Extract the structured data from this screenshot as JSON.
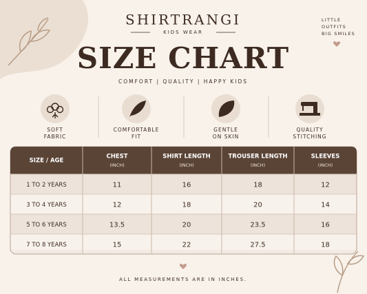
{
  "header": {
    "brand": "SHIRTRANGI",
    "subbrand": "KIDS WEAR",
    "tagline": [
      "LITTLE",
      "OUTFITS",
      "BIG SMILES"
    ],
    "title": "SIZE CHART",
    "subtitle": "COMFORT  |  QUALITY  |  HAPPY KIDS"
  },
  "features": [
    {
      "lines": [
        "SOFT",
        "FABRIC"
      ]
    },
    {
      "lines": [
        "COMFORTABLE",
        "FIT"
      ]
    },
    {
      "lines": [
        "GENTLE",
        "ON SKIN"
      ]
    },
    {
      "lines": [
        "QUALITY",
        "STITCHING"
      ]
    }
  ],
  "table": {
    "columns": [
      {
        "label": "SIZE / AGE"
      },
      {
        "label": "CHEST",
        "unit": "(INCH)"
      },
      {
        "label": "SHIRT LENGTH",
        "unit": "(INCH)"
      },
      {
        "label": "TROUSER LENGTH",
        "unit": "(INCH)"
      },
      {
        "label": "SLEEVES",
        "unit": "(INCH)"
      }
    ],
    "rows": [
      [
        "1 TO 2 YEARS",
        11,
        16,
        18,
        12
      ],
      [
        "3 TO 4 YEARS",
        12,
        18,
        20,
        14
      ],
      [
        "5 TO 6 YEARS",
        13.5,
        20,
        23.5,
        16
      ],
      [
        "7 TO 8 YEARS",
        15,
        22,
        27.5,
        18
      ]
    ]
  },
  "footer": "ALL MEASUREMENTS ARE IN INCHES."
}
